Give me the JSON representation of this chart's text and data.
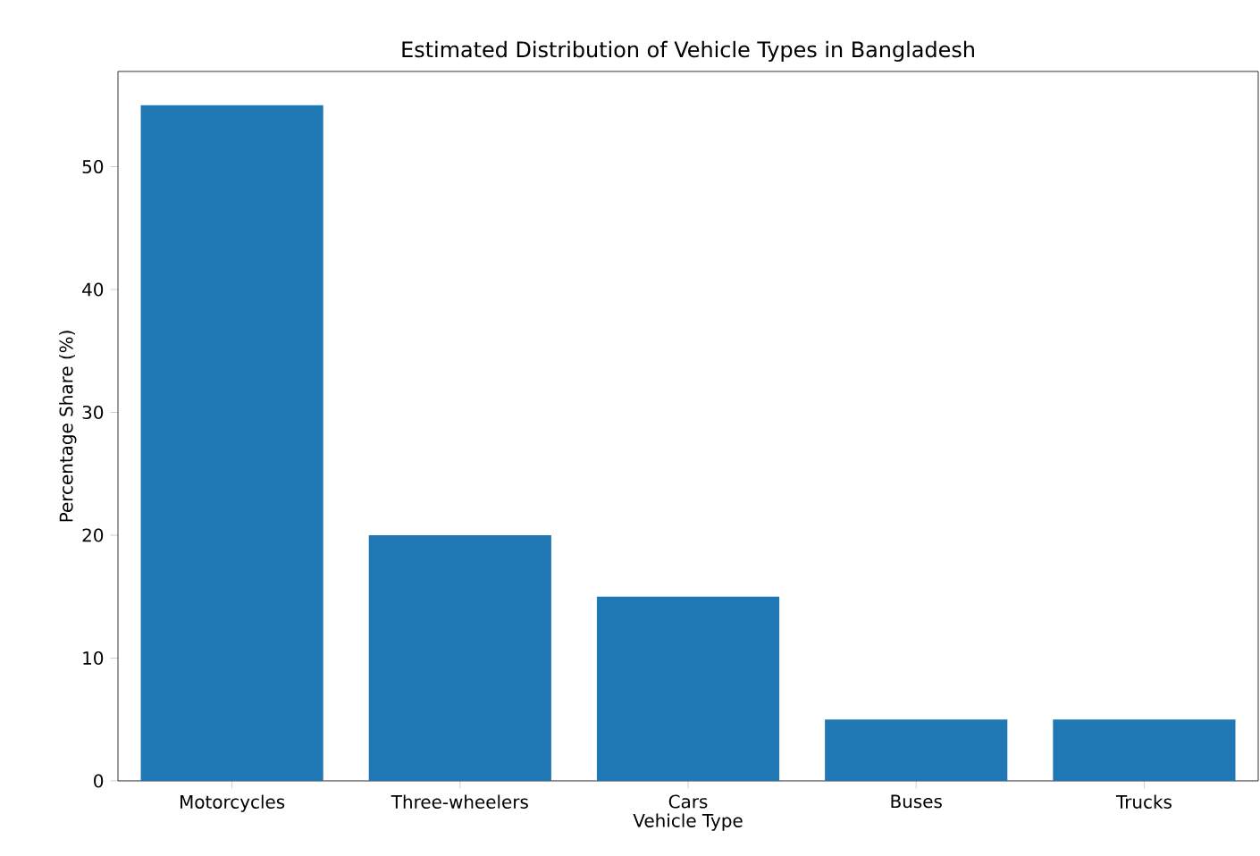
{
  "chart_data": {
    "type": "bar",
    "title": "Estimated Distribution of Vehicle Types in Bangladesh",
    "xlabel": "Vehicle Type",
    "ylabel": "Percentage Share (%)",
    "categories": [
      "Motorcycles",
      "Three-wheelers",
      "Cars",
      "Buses",
      "Trucks"
    ],
    "values": [
      55,
      20,
      15,
      5,
      5
    ],
    "color": "#1f77b4",
    "ylim": [
      0,
      57.75
    ],
    "yticks": [
      0,
      10,
      20,
      30,
      40,
      50
    ]
  }
}
